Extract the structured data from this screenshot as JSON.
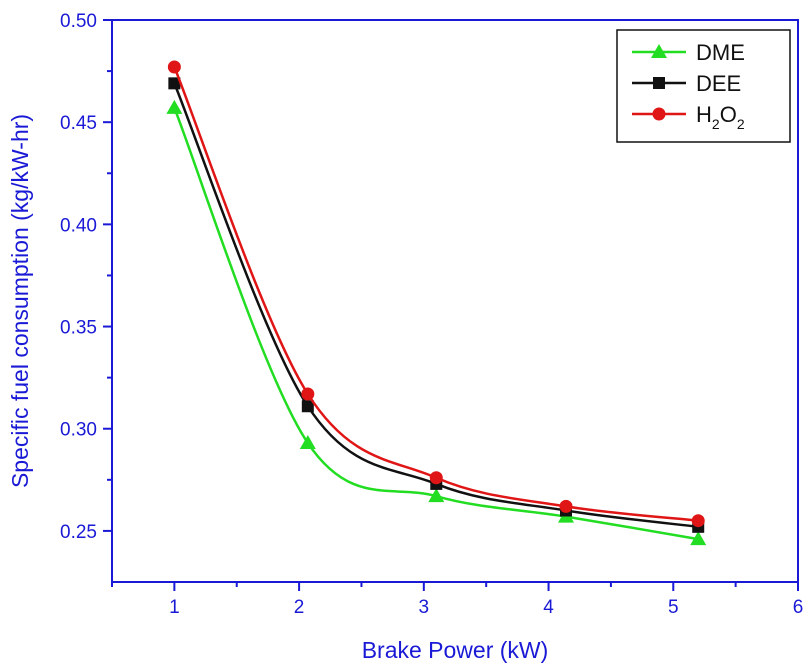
{
  "chart_data": {
    "type": "line",
    "xlabel": "Brake Power (kW)",
    "ylabel": "Specific fuel consumption (kg/kW-hr)",
    "xlim": [
      0.5,
      6
    ],
    "ylim": [
      0.225,
      0.5
    ],
    "xticks": [
      1,
      2,
      3,
      4,
      5,
      6
    ],
    "yticks": [
      0.25,
      0.3,
      0.35,
      0.4,
      0.45,
      0.5
    ],
    "xtick_labels": [
      "1",
      "2",
      "3",
      "4",
      "5",
      "6"
    ],
    "ytick_labels": [
      "0.25",
      "0.30",
      "0.35",
      "0.40",
      "0.45",
      "0.50"
    ],
    "x": [
      1.0,
      2.07,
      3.1,
      4.14,
      5.2
    ],
    "series": [
      {
        "name": "DME",
        "values": [
          0.457,
          0.293,
          0.267,
          0.257,
          0.246
        ],
        "color": "#22dd22",
        "marker": "triangle"
      },
      {
        "name": "DEE",
        "values": [
          0.469,
          0.311,
          0.273,
          0.26,
          0.252
        ],
        "color": "#111111",
        "marker": "square"
      },
      {
        "name": "H2O2",
        "values": [
          0.477,
          0.317,
          0.276,
          0.262,
          0.255
        ],
        "color": "#e01515",
        "marker": "circle"
      }
    ],
    "legend": {
      "position": "top-right",
      "entries": [
        {
          "main": "DME"
        },
        {
          "main": "DEE"
        },
        {
          "main": "H",
          "sub1": "2",
          "main2": "O",
          "sub2": "2"
        }
      ]
    },
    "axis_color": "#1a1ad6",
    "grid": false
  }
}
